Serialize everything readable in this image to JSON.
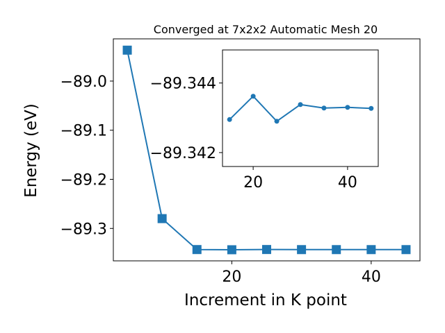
{
  "chart_data": [
    {
      "type": "line",
      "title": "Converged at 7x2x2 Automatic Mesh 20",
      "xlabel": "Increment in K point",
      "ylabel": "Energy (eV)",
      "x": [
        5,
        10,
        15,
        20,
        25,
        30,
        35,
        40,
        45
      ],
      "series": [
        {
          "values": [
            -88.937,
            -89.28,
            -89.343,
            -89.3434,
            -89.3429,
            -89.3431,
            -89.3431,
            -89.3431,
            -89.3431
          ],
          "color": "#1f77b4",
          "marker": "square"
        }
      ],
      "xlim": [
        3.0,
        47.0
      ],
      "ylim": [
        -89.366,
        -88.914
      ],
      "xticks": [
        20,
        40
      ],
      "xtick_labels": [
        "20",
        "40"
      ],
      "yticks": [
        -89.0,
        -89.1,
        -89.2,
        -89.3
      ],
      "ytick_labels": [
        "−89.0",
        "−89.1",
        "−89.2",
        "−89.3"
      ],
      "grid": false
    },
    {
      "type": "line",
      "title": "",
      "xlabel": "",
      "ylabel": "",
      "x": [
        15,
        20,
        25,
        30,
        35,
        40,
        45
      ],
      "series": [
        {
          "values": [
            -89.34295,
            -89.34362,
            -89.3429,
            -89.34338,
            -89.34328,
            -89.3433,
            -89.34327
          ],
          "color": "#1f77b4",
          "marker": "circle"
        }
      ],
      "xlim": [
        13.5,
        46.5
      ],
      "ylim": [
        -89.3416,
        -89.34495
      ],
      "xticks": [
        20,
        40
      ],
      "xtick_labels": [
        "20",
        "40"
      ],
      "yticks": [
        -89.344,
        -89.342
      ],
      "ytick_labels": [
        "−89.344",
        "−89.342"
      ],
      "grid": false
    }
  ]
}
